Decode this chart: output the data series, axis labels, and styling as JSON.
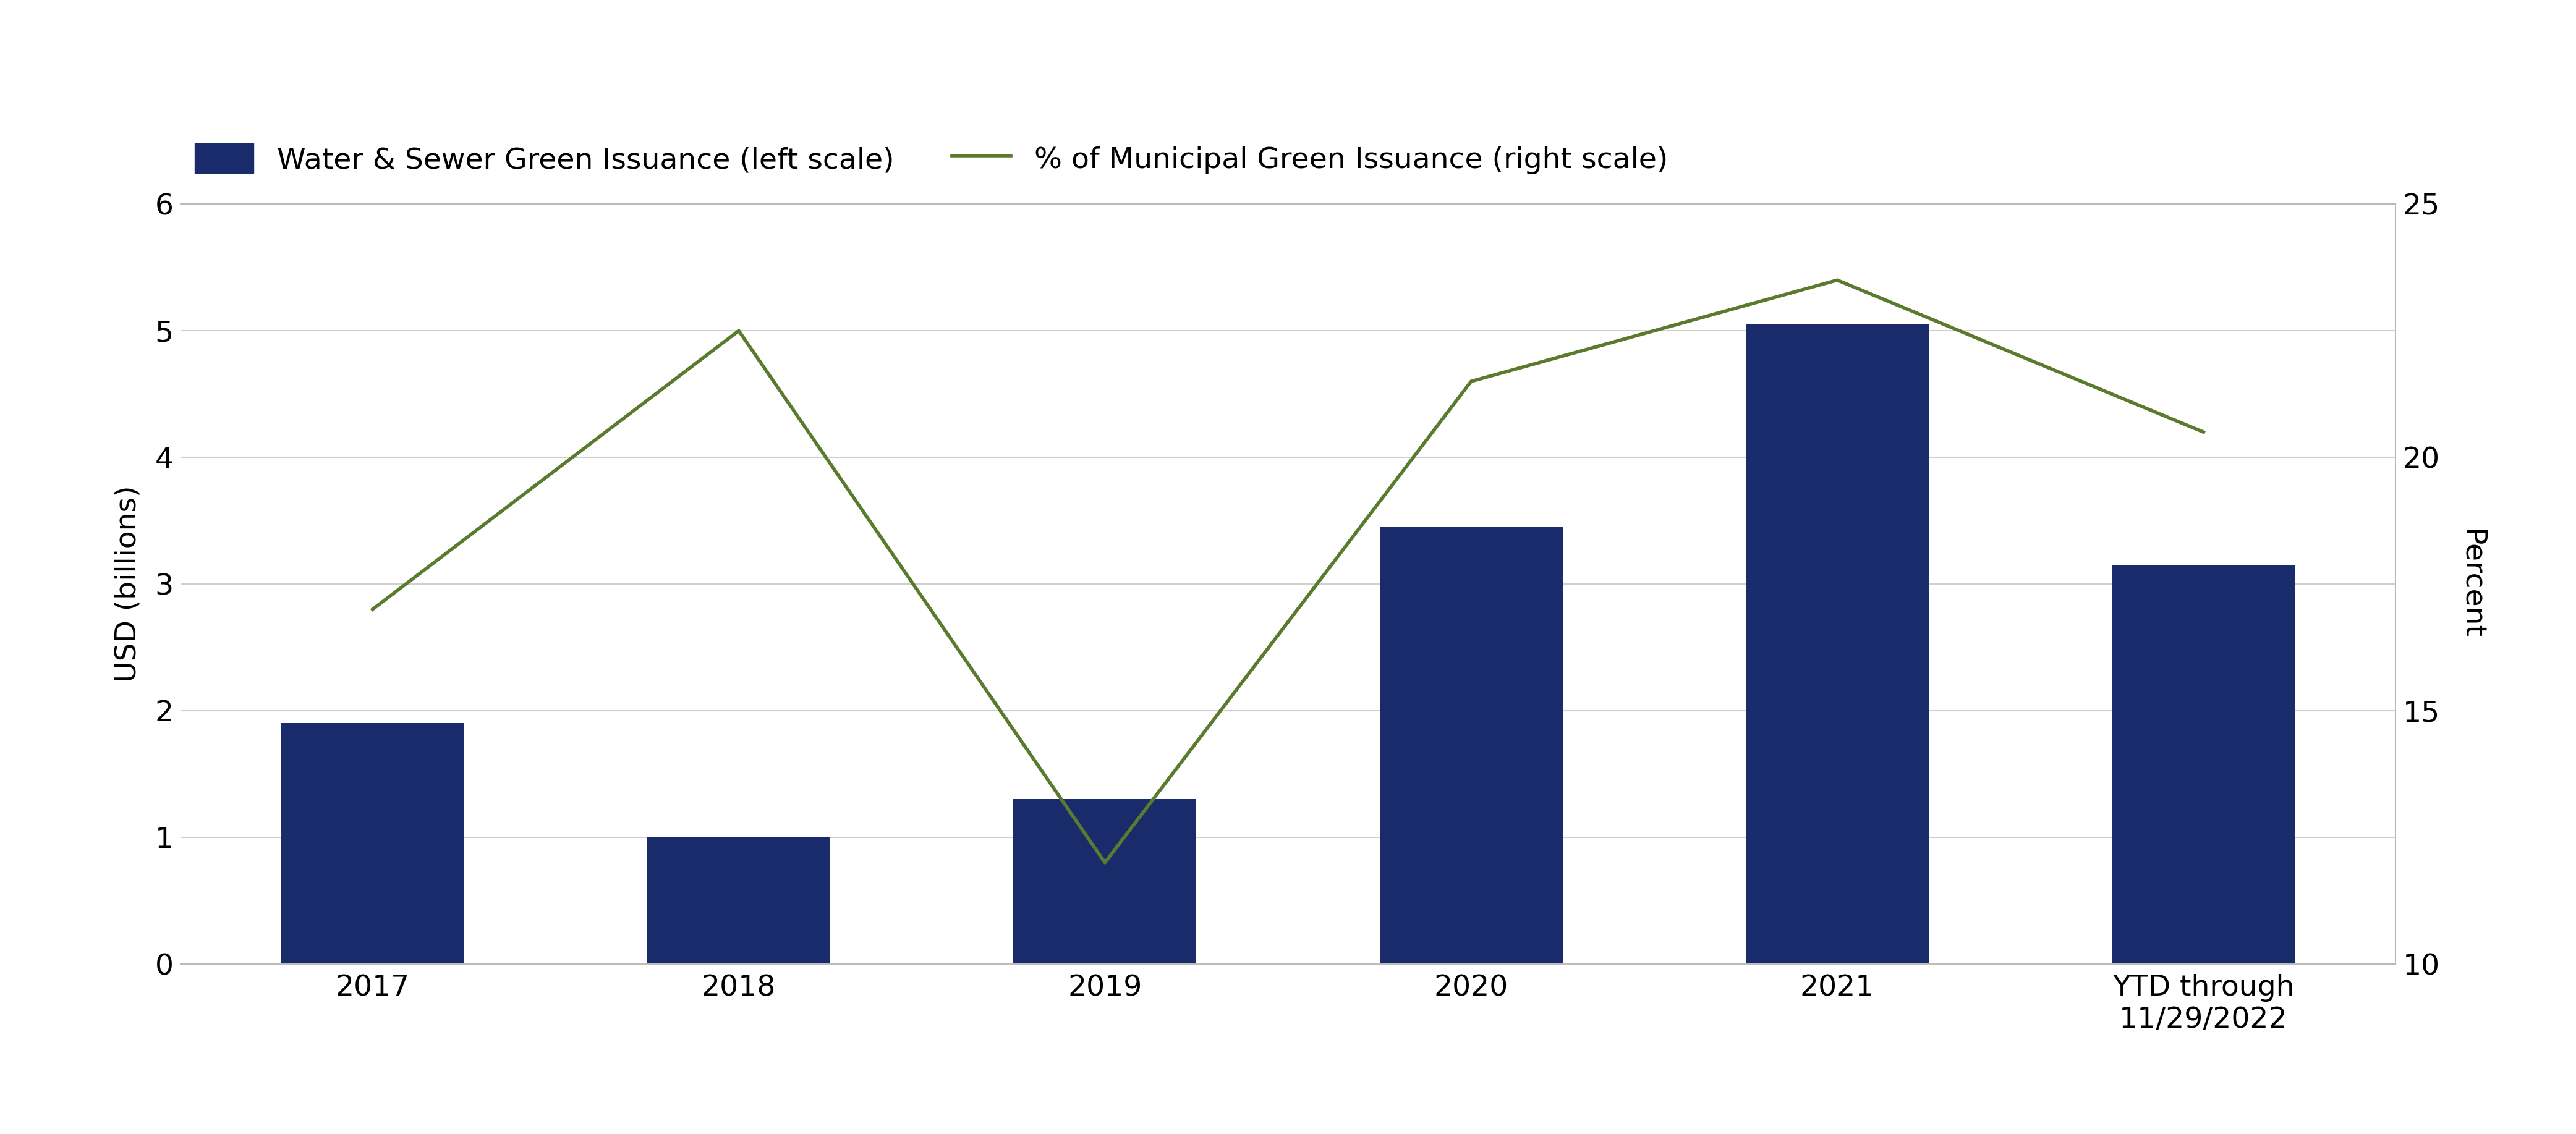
{
  "categories": [
    "2017",
    "2018",
    "2019",
    "2020",
    "2021",
    "YTD through\n11/29/2022"
  ],
  "bar_values": [
    1.9,
    1.0,
    1.3,
    3.45,
    5.05,
    3.15
  ],
  "line_values": [
    17.0,
    22.5,
    12.0,
    21.5,
    23.5,
    20.5
  ],
  "bar_color": "#1a2b6b",
  "line_color": "#5a7a2e",
  "left_ylabel": "USD (billions)",
  "right_ylabel": "Percent",
  "left_ylim": [
    0,
    6
  ],
  "right_ylim": [
    10,
    25
  ],
  "left_yticks": [
    0,
    1,
    2,
    3,
    4,
    5,
    6
  ],
  "right_yticks": [
    10,
    15,
    20,
    25
  ],
  "legend_bar_label": "Water & Sewer Green Issuance (left scale)",
  "legend_line_label": "% of Municipal Green Issuance (right scale)",
  "bg_color": "#ffffff",
  "grid_color": "#d0d0d0",
  "label_fontsize": 34,
  "tick_fontsize": 34,
  "legend_fontsize": 34,
  "bar_width": 0.5
}
